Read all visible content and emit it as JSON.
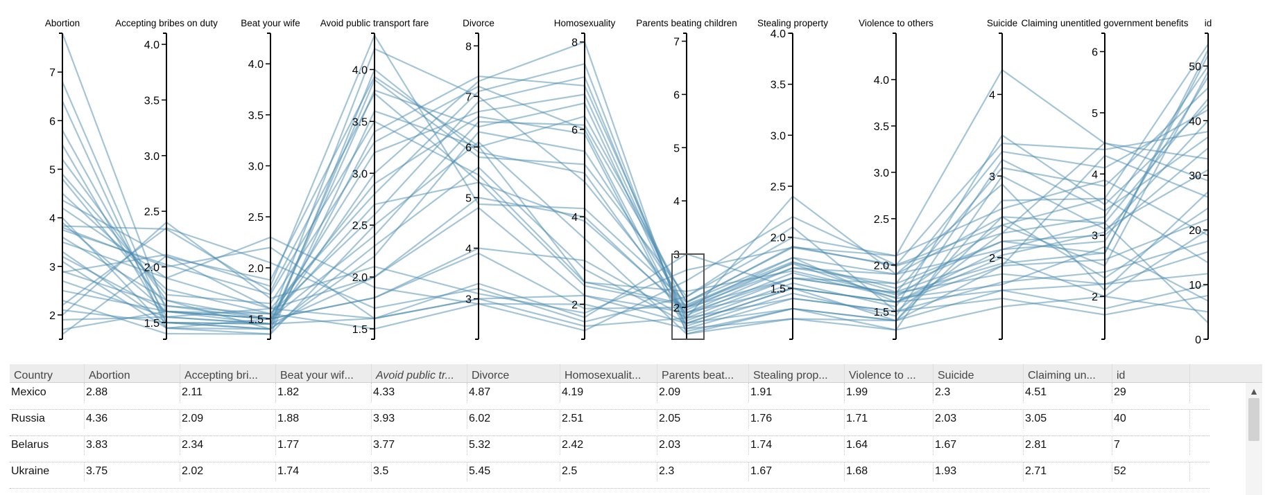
{
  "chart_data": {
    "type": "parallel-coordinates",
    "dimensions": [
      {
        "name": "Abortion",
        "min": 1.5,
        "max": 7.8,
        "ticks": [
          2,
          3,
          4,
          5,
          6,
          7
        ]
      },
      {
        "name": "Accepting bribes on duty",
        "min": 1.35,
        "max": 4.1,
        "ticks": [
          1.5,
          2.0,
          2.5,
          3.0,
          3.5,
          4.0
        ]
      },
      {
        "name": "Beat your wife",
        "min": 1.3,
        "max": 4.3,
        "ticks": [
          1.5,
          2.0,
          2.5,
          3.0,
          3.5,
          4.0
        ]
      },
      {
        "name": "Avoid public transport fare",
        "min": 1.4,
        "max": 4.35,
        "ticks": [
          1.5,
          2.0,
          2.5,
          3.0,
          3.5,
          4.0
        ]
      },
      {
        "name": "Divorce",
        "min": 2.2,
        "max": 8.25,
        "ticks": [
          3,
          4,
          5,
          6,
          7,
          8
        ]
      },
      {
        "name": "Homosexuality",
        "min": 1.2,
        "max": 8.2,
        "ticks": [
          2,
          4,
          6,
          8
        ]
      },
      {
        "name": "Parents beating children",
        "min": 1.4,
        "max": 7.15,
        "ticks": [
          2,
          3,
          4,
          5,
          6,
          7
        ]
      },
      {
        "name": "Stealing property",
        "min": 1.0,
        "max": 4.0,
        "ticks": [
          1.5,
          2.0,
          2.5,
          3.0,
          3.5,
          4.0
        ]
      },
      {
        "name": "Violence to others",
        "min": 1.2,
        "max": 4.5,
        "ticks": [
          1.5,
          2.0,
          2.5,
          3.0,
          3.5,
          4.0
        ]
      },
      {
        "name": "Suicide",
        "min": 1.0,
        "max": 4.75,
        "ticks": [
          2,
          3,
          4
        ]
      },
      {
        "name": "Claiming unentitled government benefits",
        "min": 1.3,
        "max": 6.3,
        "ticks": [
          2,
          3,
          4,
          5,
          6
        ]
      },
      {
        "name": "id",
        "min": 0,
        "max": 56,
        "ticks": [
          0,
          10,
          20,
          30,
          40,
          50
        ]
      }
    ],
    "rows": [
      [
        2.88,
        2.11,
        1.82,
        4.33,
        4.87,
        4.19,
        2.09,
        1.91,
        1.99,
        2.3,
        4.51,
        29
      ],
      [
        4.36,
        2.09,
        1.88,
        3.93,
        6.02,
        2.51,
        2.05,
        1.76,
        1.71,
        2.03,
        3.05,
        40
      ],
      [
        3.83,
        2.34,
        1.77,
        3.77,
        5.32,
        2.42,
        2.03,
        1.74,
        1.64,
        1.67,
        2.81,
        7
      ],
      [
        3.75,
        2.02,
        1.74,
        3.5,
        5.45,
        2.5,
        2.3,
        1.67,
        1.68,
        1.93,
        2.71,
        52
      ],
      [
        7.8,
        1.6,
        1.55,
        1.5,
        2.9,
        2.0,
        1.6,
        1.2,
        1.3,
        1.4,
        2.0,
        5
      ],
      [
        6.8,
        1.5,
        1.45,
        1.6,
        3.0,
        2.2,
        1.7,
        1.3,
        1.4,
        1.6,
        2.2,
        12
      ],
      [
        6.4,
        1.45,
        1.5,
        1.8,
        4.0,
        3.0,
        1.8,
        1.4,
        1.5,
        1.7,
        2.4,
        18
      ],
      [
        5.8,
        1.55,
        1.6,
        2.0,
        5.0,
        4.0,
        1.9,
        1.5,
        1.6,
        1.9,
        2.6,
        22
      ],
      [
        5.2,
        1.7,
        1.4,
        2.2,
        6.3,
        5.5,
        2.0,
        1.6,
        1.8,
        2.2,
        3.0,
        35
      ],
      [
        4.8,
        1.65,
        1.5,
        2.4,
        6.5,
        6.1,
        2.1,
        1.8,
        1.9,
        2.5,
        3.2,
        44
      ],
      [
        4.5,
        1.8,
        1.55,
        2.6,
        6.9,
        7.2,
        1.7,
        1.5,
        1.6,
        2.1,
        2.9,
        48
      ],
      [
        4.2,
        1.9,
        1.6,
        2.8,
        7.1,
        7.5,
        1.6,
        1.4,
        1.5,
        2.3,
        3.3,
        50
      ],
      [
        3.9,
        1.6,
        1.45,
        3.0,
        7.3,
        8.0,
        1.5,
        1.3,
        1.4,
        2.7,
        3.6,
        54
      ],
      [
        3.6,
        1.7,
        1.5,
        3.2,
        6.7,
        6.8,
        1.8,
        1.6,
        1.7,
        3.1,
        3.8,
        46
      ],
      [
        3.3,
        1.5,
        1.4,
        3.4,
        7.4,
        7.0,
        1.9,
        1.7,
        1.8,
        3.3,
        4.1,
        42
      ],
      [
        3.1,
        1.45,
        1.35,
        3.6,
        6.0,
        6.3,
        2.1,
        1.9,
        2.0,
        3.4,
        4.4,
        38
      ],
      [
        2.7,
        1.55,
        1.45,
        3.9,
        5.8,
        5.2,
        2.2,
        2.0,
        2.1,
        4.3,
        4.5,
        33
      ],
      [
        2.5,
        1.6,
        1.5,
        4.2,
        7.0,
        4.8,
        2.0,
        1.7,
        1.9,
        2.9,
        2.1,
        27
      ],
      [
        2.3,
        1.4,
        1.35,
        2.5,
        6.1,
        3.5,
        1.5,
        1.2,
        1.4,
        2.5,
        2.3,
        24
      ],
      [
        2.1,
        1.5,
        1.4,
        2.3,
        5.6,
        2.8,
        1.7,
        1.5,
        1.6,
        2.0,
        2.0,
        20
      ],
      [
        1.9,
        1.55,
        1.45,
        2.0,
        4.8,
        2.2,
        1.9,
        1.6,
        1.7,
        1.8,
        2.2,
        16
      ],
      [
        1.7,
        1.6,
        1.5,
        1.8,
        3.9,
        1.9,
        2.0,
        1.8,
        1.6,
        1.6,
        1.8,
        10
      ],
      [
        2.2,
        2.35,
        2.05,
        1.7,
        3.2,
        1.6,
        2.2,
        2.1,
        1.5,
        1.5,
        1.7,
        8
      ],
      [
        3.8,
        2.0,
        2.2,
        1.6,
        3.0,
        1.5,
        1.8,
        2.4,
        1.9,
        2.1,
        3.2,
        3
      ],
      [
        3.5,
        1.9,
        2.3,
        1.9,
        2.9,
        1.4,
        2.5,
        2.2,
        2.0,
        2.4,
        3.6,
        14
      ],
      [
        2.0,
        2.4,
        1.7,
        2.1,
        3.1,
        1.8,
        2.7,
        1.9,
        2.1,
        2.6,
        3.9,
        19
      ],
      [
        1.6,
        2.1,
        1.6,
        1.6,
        3.3,
        1.7,
        3.0,
        1.5,
        1.4,
        1.9,
        4.3,
        26
      ],
      [
        2.9,
        1.65,
        1.55,
        2.9,
        6.6,
        5.9,
        1.55,
        1.3,
        1.3,
        3.0,
        3.1,
        31
      ],
      [
        4.9,
        1.75,
        1.65,
        3.3,
        7.2,
        6.0,
        1.65,
        1.45,
        1.45,
        3.2,
        3.4,
        37
      ],
      [
        5.5,
        1.5,
        1.45,
        3.8,
        6.4,
        6.6,
        1.75,
        1.55,
        1.55,
        3.5,
        3.5,
        43
      ],
      [
        4.0,
        1.45,
        1.4,
        4.0,
        5.9,
        5.0,
        1.85,
        1.65,
        1.65,
        2.4,
        2.5,
        49
      ],
      [
        3.2,
        1.6,
        1.5,
        2.7,
        5.3,
        3.9,
        1.95,
        1.75,
        1.75,
        2.2,
        2.7,
        53
      ]
    ]
  },
  "grid": {
    "columns": [
      "Country",
      "Abortion",
      "Accepting bri...",
      "Beat your wif...",
      "Avoid public tr...",
      "Divorce",
      "Homosexualit...",
      "Parents beat...",
      "Stealing prop...",
      "Violence to ...",
      "Suicide",
      "Claiming un...",
      "id"
    ],
    "rows": [
      [
        "Mexico",
        "2.88",
        "2.11",
        "1.82",
        "4.33",
        "4.87",
        "4.19",
        "2.09",
        "1.91",
        "1.99",
        "2.3",
        "4.51",
        "29"
      ],
      [
        "Russia",
        "4.36",
        "2.09",
        "1.88",
        "3.93",
        "6.02",
        "2.51",
        "2.05",
        "1.76",
        "1.71",
        "2.03",
        "3.05",
        "40"
      ],
      [
        "Belarus",
        "3.83",
        "2.34",
        "1.77",
        "3.77",
        "5.32",
        "2.42",
        "2.03",
        "1.74",
        "1.64",
        "1.67",
        "2.81",
        "7"
      ],
      [
        "Ukraine",
        "3.75",
        "2.02",
        "1.74",
        "3.5",
        "5.45",
        "2.5",
        "2.3",
        "1.67",
        "1.68",
        "1.93",
        "2.71",
        "52"
      ]
    ]
  },
  "scroll_up_icon": "▲",
  "colors": {
    "line": "#4a8bb0",
    "axis": "#000000",
    "header_bg": "#ececec"
  }
}
